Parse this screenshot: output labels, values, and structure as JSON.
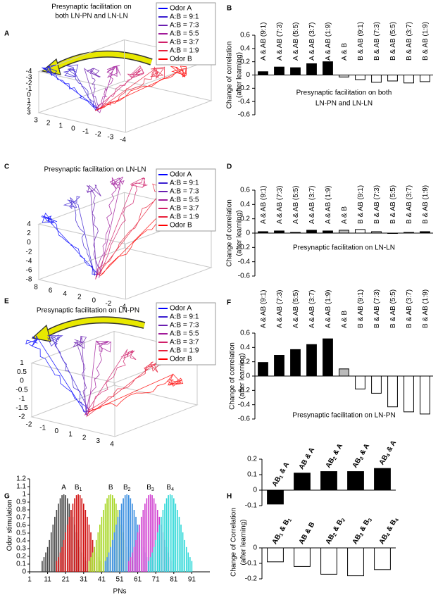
{
  "chart_data": [
    {
      "type": "trajectory3d",
      "label": "A",
      "title": [
        "Presynaptic facilitation on",
        "both LN-PN and LN-LN"
      ],
      "series": [
        {
          "name": "Odor A",
          "color": "#0000ff"
        },
        {
          "name": "A:B = 9:1",
          "color": "#3a1fd0"
        },
        {
          "name": "A:B = 7:3",
          "color": "#6a1fb0"
        },
        {
          "name": "A:B = 5:5",
          "color": "#a01a9a"
        },
        {
          "name": "A:B = 3:7",
          "color": "#d0206a"
        },
        {
          "name": "A:B = 1:9",
          "color": "#e8203a"
        },
        {
          "name": "Odor B",
          "color": "#ff0000"
        }
      ],
      "zticks": [
        -4,
        -3,
        -2,
        -1,
        0,
        1,
        2,
        3
      ],
      "xticks": [
        3,
        2,
        1,
        0,
        -1,
        -2,
        -3,
        -4
      ]
    },
    {
      "type": "bar",
      "label": "B",
      "categories": [
        "A & AB (9:1)",
        "A & AB (7:3)",
        "A & AB (5:5)",
        "A & AB (3:7)",
        "A & AB (1:9)",
        "A & B",
        "B & AB (9:1)",
        "B & AB (7:3)",
        "B & AB (5:5)",
        "B & AB (3:7)",
        "B & AB (1:9)"
      ],
      "values": [
        0.05,
        0.12,
        0.11,
        0.17,
        0.2,
        -0.03,
        -0.07,
        -0.11,
        -0.09,
        -0.12,
        -0.1
      ],
      "colors": [
        "#000000",
        "#000000",
        "#000000",
        "#000000",
        "#000000",
        "#dddddd",
        "#ffffff",
        "#ffffff",
        "#ffffff",
        "#ffffff",
        "#ffffff"
      ],
      "ylim": [
        -0.6,
        0.6
      ],
      "yticks": [
        -0.6,
        -0.4,
        -0.2,
        0,
        0.2,
        0.4,
        0.6
      ],
      "ylabel": [
        "Change of correlation",
        "(after learning)"
      ],
      "xlabel": [
        "Presynaptic facilitation on both",
        "LN-PN and LN-LN"
      ]
    },
    {
      "type": "trajectory3d",
      "label": "C",
      "title": [
        "Presynaptic facilitation on LN-LN"
      ],
      "series": [
        {
          "name": "Odor A",
          "color": "#0000ff"
        },
        {
          "name": "A:B = 9:1",
          "color": "#3a1fd0"
        },
        {
          "name": "A:B = 7:3",
          "color": "#6a1fb0"
        },
        {
          "name": "A:B = 5:5",
          "color": "#a01a9a"
        },
        {
          "name": "A:B = 3:7",
          "color": "#d0206a"
        },
        {
          "name": "A:B = 1:9",
          "color": "#e8203a"
        },
        {
          "name": "Odor B",
          "color": "#ff0000"
        }
      ],
      "zticks": [
        4,
        2,
        0,
        -2,
        -4,
        -6,
        -8
      ],
      "xticks": [
        8,
        6,
        4,
        2,
        0,
        -2,
        -4
      ]
    },
    {
      "type": "bar",
      "label": "D",
      "categories": [
        "A & AB (9:1)",
        "A & AB (7:3)",
        "A & AB (5:5)",
        "A & AB (3:7)",
        "A & AB (1:9)",
        "A & B",
        "B & AB (9:1)",
        "B & AB (7:3)",
        "B & AB (5:5)",
        "B & AB (3:7)",
        "B & AB (1:9)"
      ],
      "values": [
        0.02,
        0.03,
        0.01,
        0.04,
        0.03,
        0.04,
        0.05,
        0.02,
        0.0,
        0.01,
        0.02
      ],
      "colors": [
        "#000000",
        "#000000",
        "#000000",
        "#000000",
        "#000000",
        "#bbbbbb",
        "#ffffff",
        "#bbbbbb",
        "#ffffff",
        "#ffffff",
        "#000000"
      ],
      "ylim": [
        -0.6,
        0.6
      ],
      "yticks": [
        -0.6,
        -0.4,
        -0.2,
        0,
        0.2,
        0.4,
        0.6
      ],
      "ylabel": [
        "Change of correlation",
        "(after learning)"
      ],
      "xlabel": [
        "Presynaptic facilitation on LN-LN"
      ]
    },
    {
      "type": "trajectory3d",
      "label": "E",
      "title": [
        "Presynaptic facilitation on LN-PN"
      ],
      "series": [
        {
          "name": "Odor A",
          "color": "#0000ff"
        },
        {
          "name": "A:B = 9:1",
          "color": "#3a1fd0"
        },
        {
          "name": "A:B = 7:3",
          "color": "#6a1fb0"
        },
        {
          "name": "A:B = 5:5",
          "color": "#a01a9a"
        },
        {
          "name": "A:B = 3:7",
          "color": "#d0206a"
        },
        {
          "name": "A:B = 1:9",
          "color": "#e8203a"
        },
        {
          "name": "Odor B",
          "color": "#ff0000"
        }
      ],
      "zticks": [
        1,
        0.5,
        0,
        -0.5,
        -1,
        -1.5,
        -2
      ],
      "xticks": [
        -2,
        -1,
        0,
        1,
        2,
        3,
        4
      ]
    },
    {
      "type": "bar",
      "label": "F",
      "categories": [
        "A & AB (9:1)",
        "A & AB (7:3)",
        "A & AB (5:5)",
        "A & AB (3:7)",
        "A & AB (1:9)",
        "A & B",
        "B & AB (9:1)",
        "B & AB (7:3)",
        "B & AB (5:5)",
        "B & AB (3:7)",
        "B & AB (1:9)"
      ],
      "values": [
        0.19,
        0.29,
        0.37,
        0.44,
        0.52,
        0.1,
        -0.18,
        -0.24,
        -0.43,
        -0.5,
        -0.53
      ],
      "colors": [
        "#000000",
        "#000000",
        "#000000",
        "#000000",
        "#000000",
        "#bbbbbb",
        "#ffffff",
        "#ffffff",
        "#ffffff",
        "#ffffff",
        "#ffffff"
      ],
      "ylim": [
        -0.6,
        0.6
      ],
      "yticks": [
        -0.6,
        -0.4,
        -0.2,
        0,
        0.2,
        0.4,
        0.6
      ],
      "ylabel": [
        "Change of correlation",
        "(after learning)"
      ],
      "xlabel": [
        "Presynaptic facilitation on LN-PN"
      ]
    },
    {
      "type": "histogram",
      "label": "G",
      "ylabel": "Odor stimulation",
      "xlabel": "PNs",
      "xlim": [
        1,
        101
      ],
      "xticks": [
        1,
        11,
        21,
        31,
        41,
        51,
        61,
        71,
        81,
        91
      ],
      "ylim": [
        0,
        1.2
      ],
      "yticks": [
        0,
        0.1,
        0.2,
        0.3,
        0.4,
        0.5,
        0.6,
        0.7,
        0.8,
        0.9,
        1,
        1.1,
        1.2
      ],
      "series": [
        {
          "name": [
            "A"
          ],
          "color": "#444444",
          "x": [
            8,
            9,
            10,
            11,
            12,
            13,
            14,
            15,
            16,
            17,
            18,
            19,
            20,
            21,
            22,
            23,
            24,
            25,
            26,
            27,
            28,
            29,
            30,
            31,
            32
          ],
          "values": [
            0.14,
            0.19,
            0.25,
            0.32,
            0.41,
            0.51,
            0.61,
            0.71,
            0.8,
            0.88,
            0.95,
            0.99,
            1,
            0.99,
            0.95,
            0.88,
            0.8,
            0.71,
            0.61,
            0.51,
            0.41,
            0.32,
            0.25,
            0.19,
            0.14
          ]
        },
        {
          "name": [
            "B",
            "1"
          ],
          "color": "#d01010",
          "x": [
            16,
            17,
            18,
            19,
            20,
            21,
            22,
            23,
            24,
            25,
            26,
            27,
            28,
            29,
            30,
            31,
            32,
            33,
            34,
            35,
            36,
            37,
            38,
            39,
            40
          ],
          "values": [
            0.14,
            0.19,
            0.25,
            0.32,
            0.41,
            0.51,
            0.61,
            0.71,
            0.8,
            0.88,
            0.95,
            0.99,
            1,
            0.99,
            0.95,
            0.88,
            0.8,
            0.71,
            0.61,
            0.51,
            0.41,
            0.32,
            0.25,
            0.19,
            0.14
          ]
        },
        {
          "name": [
            "B"
          ],
          "color": "#a6d620",
          "x": [
            34,
            35,
            36,
            37,
            38,
            39,
            40,
            41,
            42,
            43,
            44,
            45,
            46,
            47,
            48,
            49,
            50,
            51,
            52,
            53,
            54,
            55,
            56,
            57,
            58
          ],
          "values": [
            0.14,
            0.19,
            0.25,
            0.32,
            0.41,
            0.51,
            0.61,
            0.71,
            0.8,
            0.88,
            0.95,
            0.99,
            1,
            0.99,
            0.95,
            0.88,
            0.8,
            0.71,
            0.61,
            0.51,
            0.41,
            0.32,
            0.25,
            0.19,
            0.14
          ]
        },
        {
          "name": [
            "B",
            "2"
          ],
          "color": "#3a8ee0",
          "x": [
            43,
            44,
            45,
            46,
            47,
            48,
            49,
            50,
            51,
            52,
            53,
            54,
            55,
            56,
            57,
            58,
            59,
            60,
            61,
            62,
            63,
            64,
            65,
            66,
            67
          ],
          "values": [
            0.14,
            0.19,
            0.25,
            0.32,
            0.41,
            0.51,
            0.61,
            0.71,
            0.8,
            0.88,
            0.95,
            0.99,
            1,
            0.99,
            0.95,
            0.88,
            0.8,
            0.71,
            0.61,
            0.51,
            0.41,
            0.32,
            0.25,
            0.19,
            0.14
          ]
        },
        {
          "name": [
            "B",
            "3"
          ],
          "color": "#d040d0",
          "x": [
            56,
            57,
            58,
            59,
            60,
            61,
            62,
            63,
            64,
            65,
            66,
            67,
            68,
            69,
            70,
            71,
            72,
            73,
            74,
            75,
            76,
            77,
            78,
            79,
            80
          ],
          "values": [
            0.14,
            0.19,
            0.25,
            0.32,
            0.41,
            0.51,
            0.61,
            0.71,
            0.8,
            0.88,
            0.95,
            0.99,
            1,
            0.99,
            0.95,
            0.88,
            0.8,
            0.71,
            0.61,
            0.51,
            0.41,
            0.32,
            0.25,
            0.19,
            0.14
          ]
        },
        {
          "name": [
            "B",
            "4"
          ],
          "color": "#30d8d8",
          "x": [
            67,
            68,
            69,
            70,
            71,
            72,
            73,
            74,
            75,
            76,
            77,
            78,
            79,
            80,
            81,
            82,
            83,
            84,
            85,
            86,
            87,
            88,
            89,
            90,
            91
          ],
          "values": [
            0.14,
            0.19,
            0.25,
            0.32,
            0.41,
            0.51,
            0.61,
            0.71,
            0.8,
            0.88,
            0.95,
            0.99,
            1,
            0.99,
            0.95,
            0.88,
            0.8,
            0.71,
            0.61,
            0.51,
            0.41,
            0.32,
            0.25,
            0.19,
            0.14
          ]
        }
      ]
    },
    {
      "type": "bar",
      "label": "H",
      "categories": [
        [
          "AB",
          "1",
          " & A"
        ],
        [
          "AB & A"
        ],
        [
          "AB",
          "2",
          " & A"
        ],
        [
          "AB",
          "3",
          " & A"
        ],
        [
          "AB",
          "4",
          " & A"
        ]
      ],
      "values": [
        -0.09,
        0.11,
        0.12,
        0.12,
        0.14
      ],
      "colors": [
        "#000000",
        "#000000",
        "#000000",
        "#000000",
        "#000000"
      ],
      "ylim": [
        -0.1,
        0.2
      ],
      "yticks": [
        -0.1,
        0,
        0.1,
        0.2
      ],
      "ylabel": [
        "Change of Correlation",
        "(after learning)"
      ]
    },
    {
      "type": "bar",
      "categories": [
        [
          "AB",
          "1",
          " & B",
          "1"
        ],
        [
          "AB & B"
        ],
        [
          "AB",
          "2",
          " & B",
          "2"
        ],
        [
          "AB",
          "3",
          " & B",
          "3"
        ],
        [
          "AB",
          "4",
          " & B",
          "4"
        ]
      ],
      "values": [
        -0.09,
        -0.12,
        -0.17,
        -0.18,
        -0.14
      ],
      "colors": [
        "#ffffff",
        "#ffffff",
        "#ffffff",
        "#ffffff",
        "#ffffff"
      ],
      "ylim": [
        -0.2,
        0
      ],
      "yticks": [
        -0.2,
        -0.1,
        0
      ]
    }
  ]
}
